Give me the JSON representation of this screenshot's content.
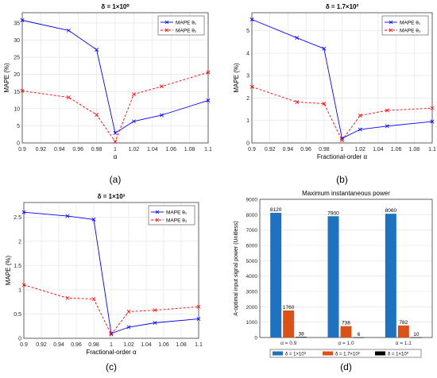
{
  "panels": [
    {
      "label": "(a)",
      "title": "δ = 1×10⁰",
      "xlabel": "α",
      "ylabel": "MAPE (%)",
      "chart_data": {
        "type": "line",
        "x": [
          0.9,
          0.95,
          0.98,
          1.0,
          1.02,
          1.05,
          1.1
        ],
        "series": [
          {
            "name": "MAPE θ₁",
            "values": [
              35.8,
              32.8,
              27.2,
              2.9,
              6.3,
              8.1,
              12.4
            ],
            "color": "#0000ff",
            "dash": "solid",
            "marker": "x"
          },
          {
            "name": "MAPE θ₂",
            "values": [
              15.2,
              13.3,
              8.2,
              0.4,
              14.2,
              16.5,
              20.6
            ],
            "color": "#ff0000",
            "dash": "dashed",
            "marker": "x"
          }
        ],
        "xlim": [
          0.9,
          1.1
        ],
        "ylim": [
          0,
          38
        ],
        "xticks": [
          "0.9",
          "0.92",
          "0.94",
          "0.96",
          "0.98",
          "1",
          "1.02",
          "1.04",
          "1.06",
          "1.08",
          "1.1"
        ],
        "yticks": [
          "0",
          "5",
          "10",
          "15",
          "20",
          "25",
          "30",
          "35"
        ],
        "grid": true,
        "legend": "top-right"
      }
    },
    {
      "label": "(b)",
      "title": "δ = 1.7×10²",
      "xlabel": "Fractional-order α",
      "ylabel": "MAPE (%)",
      "chart_data": {
        "type": "line",
        "x": [
          0.9,
          0.95,
          0.98,
          1.0,
          1.02,
          1.05,
          1.1
        ],
        "series": [
          {
            "name": "MAPE θ₁",
            "values": [
              5.5,
              4.68,
              4.2,
              0.2,
              0.6,
              0.75,
              0.95
            ],
            "color": "#0000ff",
            "dash": "solid",
            "marker": "x"
          },
          {
            "name": "MAPE θ₂",
            "values": [
              2.5,
              1.82,
              1.75,
              0.12,
              1.22,
              1.45,
              1.55
            ],
            "color": "#ff0000",
            "dash": "dashed",
            "marker": "x"
          }
        ],
        "xlim": [
          0.9,
          1.1
        ],
        "ylim": [
          0,
          5.8
        ],
        "xticks": [
          "0.9",
          "0.92",
          "0.94",
          "0.96",
          "0.98",
          "1",
          "1.02",
          "1.04",
          "1.06",
          "1.08",
          "1.1"
        ],
        "yticks": [
          "0",
          "1",
          "2",
          "3",
          "4",
          "5"
        ],
        "grid": true,
        "legend": "top-right"
      }
    },
    {
      "label": "(c)",
      "title": "δ = 1×10³",
      "xlabel": "Fractional-order α",
      "ylabel": "MAPE (%)",
      "chart_data": {
        "type": "line",
        "x": [
          0.9,
          0.95,
          0.98,
          1.0,
          1.02,
          1.05,
          1.1
        ],
        "series": [
          {
            "name": "MAPE θ₁",
            "values": [
              2.6,
              2.52,
              2.45,
              0.1,
              0.23,
              0.32,
              0.4
            ],
            "color": "#0000ff",
            "dash": "solid",
            "marker": "x"
          },
          {
            "name": "MAPE θ₂",
            "values": [
              1.1,
              0.83,
              0.81,
              0.08,
              0.55,
              0.58,
              0.65
            ],
            "color": "#ff0000",
            "dash": "dashed",
            "marker": "x"
          }
        ],
        "xlim": [
          0.9,
          1.1
        ],
        "ylim": [
          0,
          2.8
        ],
        "xticks": [
          "0.9",
          "0.92",
          "0.94",
          "0.96",
          "0.98",
          "1",
          "1.02",
          "1.04",
          "1.06",
          "1.08",
          "1.1"
        ],
        "yticks": [
          "0",
          "0.5",
          "1",
          "1.5",
          "2",
          "2.5"
        ],
        "grid": true,
        "legend": "top-right"
      }
    },
    {
      "label": "(d)",
      "title": "Maximum instantaneous power",
      "xlabel": "",
      "ylabel": "A-optimal input signal power (Unitless)",
      "chart_data": {
        "type": "bar",
        "categories": [
          "α = 0.9",
          "α = 1.0",
          "α = 1.1"
        ],
        "series": [
          {
            "name": "δ = 1×10³",
            "values": [
              8120,
              7900,
              8060
            ],
            "color": "#1f72bd"
          },
          {
            "name": "δ = 1.7×10²",
            "values": [
              1760,
              738,
              782
            ],
            "color": "#d95319"
          },
          {
            "name": "δ = 1×10⁰",
            "values": [
              38,
              6,
              10
            ],
            "color": "#000000"
          }
        ],
        "data_labels": [
          "8120",
          "1760",
          "38",
          "7900",
          "738",
          "6",
          "8060",
          "782",
          "10"
        ],
        "ylim": [
          0,
          9000
        ],
        "yticks": [
          "0",
          "1000",
          "2000",
          "3000",
          "4000",
          "5000",
          "6000",
          "7000",
          "8000",
          "9000"
        ],
        "grid": true,
        "legend": "bottom"
      }
    }
  ]
}
